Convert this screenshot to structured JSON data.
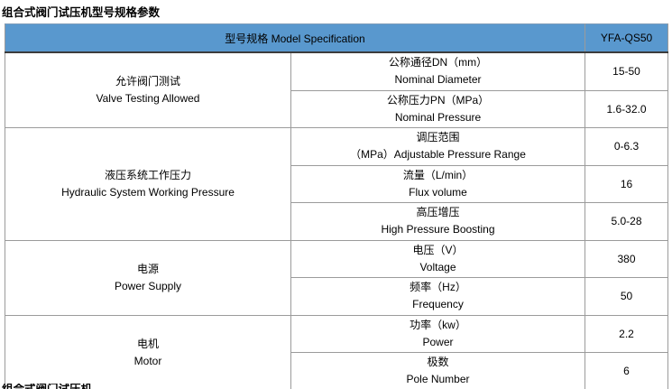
{
  "page": {
    "title": "组合式阀门试压机型号规格参数",
    "footer_partial": "组合式阀门试压机"
  },
  "colors": {
    "header_bg": "#5998CE",
    "border": "#9b9b9b",
    "header_bottom_border": "#3c3c3c",
    "text": "#000000",
    "background": "#ffffff"
  },
  "table": {
    "header": {
      "spec_label": "型号规格 Model Specification",
      "model_value": "YFA-QS50"
    },
    "groups": [
      {
        "zh": "允许阀门测试",
        "en": "Valve Testing Allowed",
        "rows": [
          {
            "zh": "公称通径DN（mm）",
            "en": "Nominal Diameter",
            "value": "15-50"
          },
          {
            "zh": "公称压力PN（MPa）",
            "en": "Nominal Pressure",
            "value": "1.6-32.0"
          }
        ]
      },
      {
        "zh": "液压系统工作压力",
        "en": "Hydraulic System Working Pressure",
        "rows": [
          {
            "zh": "调压范围",
            "en": "（MPa）Adjustable Pressure Range",
            "value": "0-6.3"
          },
          {
            "zh": "流量（L/min）",
            "en": "Flux volume",
            "value": "16"
          },
          {
            "zh": "高压增压",
            "en": "High Pressure Boosting",
            "value": "5.0-28"
          }
        ]
      },
      {
        "zh": "电源",
        "en": "Power Supply",
        "rows": [
          {
            "zh": "电压（V）",
            "en": "Voltage",
            "value": "380"
          },
          {
            "zh": "频率（Hz）",
            "en": "Frequency",
            "value": "50"
          }
        ]
      },
      {
        "zh": "电机",
        "en": "Motor",
        "rows": [
          {
            "zh": "功率（kw）",
            "en": "Power",
            "value": "2.2"
          },
          {
            "zh": "极数",
            "en": "Pole Number",
            "value": "6"
          }
        ]
      }
    ]
  }
}
